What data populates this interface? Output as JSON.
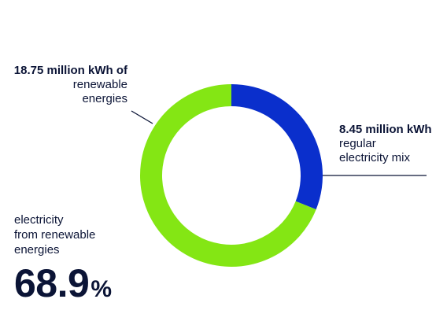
{
  "chart_data": {
    "type": "pie",
    "style": "donut",
    "slices": [
      {
        "label": "regular electricity mix",
        "value": 8.45,
        "unit": "million kWh",
        "color": "#0a2fcc"
      },
      {
        "label": "renewable energies",
        "value": 18.75,
        "unit": "million kWh",
        "color": "#84e614"
      }
    ],
    "start": "top, clockwise",
    "annotations": [
      {
        "for": "renewable energies",
        "bold": "18.75 million kWh of",
        "lines": [
          "renewable",
          "energies"
        ]
      },
      {
        "for": "regular electricity mix",
        "bold": "8.45 million kWh",
        "lines": [
          "regular",
          "electricity mix"
        ]
      }
    ]
  },
  "summary": {
    "desc_lines": [
      "electricity",
      "from renewable",
      "energies"
    ],
    "value": "68.9",
    "unit": "%"
  },
  "colors": {
    "text": "#0b1436",
    "regular": "#0a2fcc",
    "renewable": "#84e614",
    "leader": "#0b1436"
  }
}
